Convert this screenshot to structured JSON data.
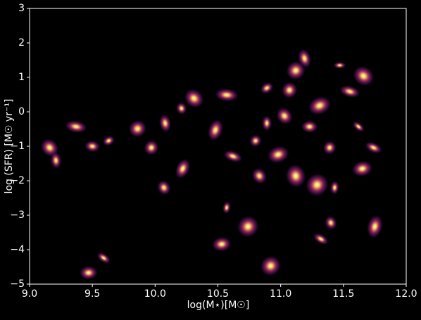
{
  "chart_data": {
    "type": "scatter",
    "x_label": "log(M⋆)[M☉]",
    "y_label": "log (SFR) [M☉ yr⁻¹]",
    "xlim": [
      9.0,
      12.0
    ],
    "ylim": [
      -5,
      3
    ],
    "xticks": [
      {
        "value": 9.0,
        "label": "9.0"
      },
      9.5,
      {
        "value": 10.0,
        "label": "10.0"
      },
      10.5,
      {
        "value": 11.0,
        "label": "11.0"
      },
      11.5,
      {
        "value": 12.0,
        "label": "12.0"
      }
    ],
    "yticks": [
      {
        "value": -5,
        "label": "−5"
      },
      {
        "value": -4,
        "label": "−4"
      },
      {
        "value": -3,
        "label": "−3"
      },
      {
        "value": -2,
        "label": "−2"
      },
      {
        "value": -1,
        "label": "−1"
      },
      0,
      1,
      2,
      3
    ],
    "x": [
      11.47,
      11.66,
      11.19,
      11.07,
      10.89,
      10.57,
      10.31,
      10.08,
      9.97,
      9.63,
      9.37,
      9.16,
      9.21,
      11.39,
      11.31,
      11.55,
      11.03,
      10.89,
      10.8,
      10.98,
      10.62,
      10.83,
      11.43,
      11.29,
      11.65,
      11.74,
      10.07,
      10.57,
      10.74,
      10.53,
      11.32,
      11.4,
      11.75,
      10.92,
      9.47,
      9.59,
      10.21,
      10.48,
      11.12,
      11.23,
      11.62,
      11.12,
      10.22,
      9.86,
      9.5
    ],
    "series": [
      {
        "color": "#ffd45a",
        "values": [
          1.35,
          1.04,
          1.55,
          0.63,
          0.69,
          0.49,
          0.39,
          -0.33,
          -1.04,
          -0.84,
          -0.43,
          -1.04,
          -1.41,
          -1.04,
          0.18,
          0.59,
          -0.12,
          -0.33,
          -0.84,
          -1.24,
          -1.29,
          -1.86,
          -2.2,
          -2.12,
          -1.65,
          -1.04,
          -2.2,
          -2.78,
          -3.33,
          -3.84,
          -3.69,
          -3.22,
          -3.33,
          -4.47,
          -4.67,
          -4.24,
          0.1,
          -0.53,
          1.2,
          -0.43,
          -0.43,
          -1.86,
          -1.65,
          -0.49,
          -1.0
        ]
      }
    ]
  }
}
